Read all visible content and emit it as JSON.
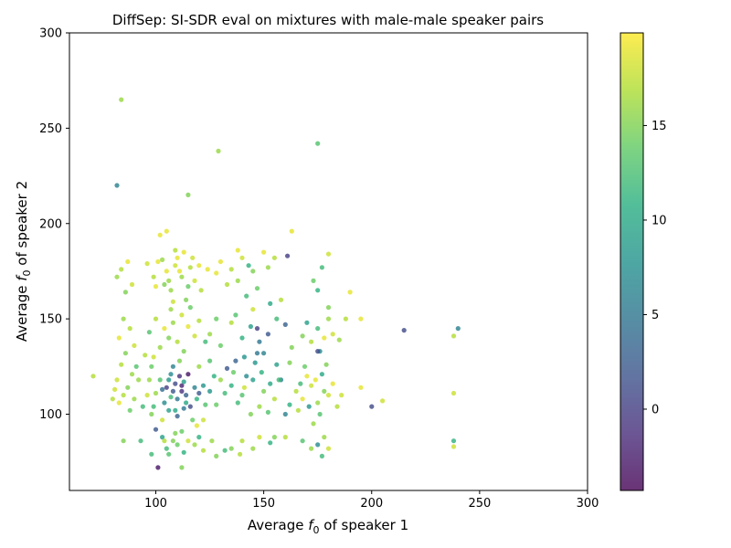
{
  "chart_data": {
    "type": "scatter",
    "title": "DiffSep: SI-SDR eval on mixtures with male-male speaker pairs",
    "xlabel": {
      "pre": "Average ",
      "var": "f",
      "sub": "0",
      "post": " of speaker 1"
    },
    "ylabel": {
      "pre": "Average ",
      "var": "f",
      "sub": "0",
      "post": " of speaker 2"
    },
    "xlim": [
      60,
      300
    ],
    "ylim": [
      60,
      300
    ],
    "xticks": [
      100,
      150,
      200,
      250,
      300
    ],
    "yticks": [
      100,
      150,
      200,
      250,
      300
    ],
    "colorbar": {
      "cmap": "viridis",
      "range": [
        -4.3,
        19.9
      ],
      "ticks": [
        0,
        5,
        10,
        15
      ]
    },
    "grid": false,
    "points": [
      [
        84,
        265,
        16
      ],
      [
        175,
        242,
        13
      ],
      [
        82,
        220,
        6
      ],
      [
        129,
        238,
        16
      ],
      [
        115,
        215,
        15
      ],
      [
        215,
        144,
        1
      ],
      [
        240,
        145,
        6
      ],
      [
        238,
        141,
        17
      ],
      [
        238,
        111,
        18
      ],
      [
        200,
        104,
        1
      ],
      [
        205,
        107,
        18
      ],
      [
        195,
        114,
        19
      ],
      [
        238,
        86,
        11
      ],
      [
        238,
        83,
        18
      ],
      [
        195,
        150,
        19
      ],
      [
        102,
        194,
        19
      ],
      [
        105,
        196,
        19
      ],
      [
        163,
        196,
        19
      ],
      [
        161,
        183,
        0
      ],
      [
        180,
        184,
        18
      ],
      [
        101,
        72,
        -3
      ],
      [
        112,
        72,
        15
      ],
      [
        71,
        120,
        17
      ],
      [
        108,
        112,
        2
      ],
      [
        110,
        108,
        5
      ],
      [
        112,
        115,
        -2
      ],
      [
        106,
        118,
        8
      ],
      [
        114,
        110,
        3
      ],
      [
        104,
        106,
        7
      ],
      [
        116,
        104,
        1
      ],
      [
        109,
        102,
        10
      ],
      [
        103,
        113,
        4
      ],
      [
        118,
        114,
        6
      ],
      [
        111,
        120,
        -1
      ],
      [
        107,
        109,
        12
      ],
      [
        113,
        117,
        9
      ],
      [
        105,
        114,
        0
      ],
      [
        119,
        108,
        11
      ],
      [
        102,
        118,
        13
      ],
      [
        115,
        121,
        -3
      ],
      [
        110,
        99,
        3
      ],
      [
        108,
        125,
        6
      ],
      [
        117,
        97,
        14
      ],
      [
        120,
        111,
        2
      ],
      [
        100,
        111,
        16
      ],
      [
        106,
        102,
        9
      ],
      [
        113,
        103,
        5
      ],
      [
        111,
        128,
        15
      ],
      [
        99,
        104,
        12
      ],
      [
        122,
        115,
        8
      ],
      [
        109,
        116,
        1
      ],
      [
        112,
        112,
        -1
      ],
      [
        114,
        106,
        10
      ],
      [
        107,
        121,
        7
      ],
      [
        103,
        97,
        18
      ],
      [
        123,
        105,
        13
      ],
      [
        105,
        82,
        12
      ],
      [
        108,
        86,
        15
      ],
      [
        113,
        80,
        11
      ],
      [
        118,
        84,
        16
      ],
      [
        103,
        88,
        9
      ],
      [
        110,
        84,
        14
      ],
      [
        122,
        81,
        17
      ],
      [
        100,
        92,
        2
      ],
      [
        106,
        79,
        13
      ],
      [
        115,
        86,
        18
      ],
      [
        126,
        86,
        16
      ],
      [
        98,
        79,
        12
      ],
      [
        109,
        90,
        15
      ],
      [
        120,
        88,
        11
      ],
      [
        104,
        86,
        17
      ],
      [
        112,
        91,
        14
      ],
      [
        135,
        82,
        15
      ],
      [
        140,
        86,
        17
      ],
      [
        145,
        82,
        16
      ],
      [
        148,
        88,
        18
      ],
      [
        153,
        85,
        11
      ],
      [
        132,
        81,
        12
      ],
      [
        128,
        78,
        15
      ],
      [
        139,
        79,
        17
      ],
      [
        155,
        88,
        15
      ],
      [
        168,
        86,
        13
      ],
      [
        172,
        82,
        16
      ],
      [
        175,
        84,
        7
      ],
      [
        177,
        78,
        12
      ],
      [
        180,
        82,
        18
      ],
      [
        178,
        88,
        16
      ],
      [
        93,
        86,
        12
      ],
      [
        85,
        86,
        15
      ],
      [
        105,
        175,
        19
      ],
      [
        109,
        178,
        18
      ],
      [
        112,
        172,
        16
      ],
      [
        101,
        180,
        19
      ],
      [
        116,
        177,
        17
      ],
      [
        104,
        168,
        15
      ],
      [
        110,
        182,
        19
      ],
      [
        118,
        170,
        18
      ],
      [
        107,
        165,
        16
      ],
      [
        113,
        185,
        19
      ],
      [
        120,
        178,
        19
      ],
      [
        99,
        172,
        17
      ],
      [
        115,
        167,
        14
      ],
      [
        108,
        159,
        18
      ],
      [
        103,
        181,
        16
      ],
      [
        111,
        175,
        19
      ],
      [
        117,
        182,
        18
      ],
      [
        106,
        170,
        16
      ],
      [
        121,
        165,
        17
      ],
      [
        100,
        167,
        19
      ],
      [
        114,
        160,
        15
      ],
      [
        109,
        186,
        17
      ],
      [
        96,
        179,
        18
      ],
      [
        124,
        176,
        19
      ],
      [
        84,
        176,
        17
      ],
      [
        87,
        180,
        19
      ],
      [
        82,
        172,
        16
      ],
      [
        89,
        168,
        18
      ],
      [
        86,
        164,
        15
      ],
      [
        85,
        150,
        16
      ],
      [
        88,
        145,
        17
      ],
      [
        83,
        140,
        19
      ],
      [
        90,
        136,
        18
      ],
      [
        86,
        132,
        15
      ],
      [
        84,
        126,
        17
      ],
      [
        89,
        121,
        16
      ],
      [
        82,
        118,
        18
      ],
      [
        87,
        114,
        15
      ],
      [
        85,
        110,
        17
      ],
      [
        83,
        106,
        19
      ],
      [
        90,
        108,
        16
      ],
      [
        88,
        102,
        14
      ],
      [
        81,
        113,
        18
      ],
      [
        92,
        118,
        16
      ],
      [
        94,
        104,
        12
      ],
      [
        80,
        108,
        17
      ],
      [
        91,
        125,
        13
      ],
      [
        100,
        150,
        17
      ],
      [
        104,
        145,
        19
      ],
      [
        108,
        148,
        16
      ],
      [
        112,
        152,
        18
      ],
      [
        106,
        140,
        15
      ],
      [
        110,
        138,
        17
      ],
      [
        115,
        146,
        19
      ],
      [
        102,
        135,
        16
      ],
      [
        118,
        141,
        18
      ],
      [
        97,
        143,
        13
      ],
      [
        113,
        133,
        15
      ],
      [
        120,
        149,
        17
      ],
      [
        107,
        155,
        16
      ],
      [
        123,
        138,
        12
      ],
      [
        99,
        130,
        18
      ],
      [
        116,
        156,
        14
      ],
      [
        130,
        180,
        19
      ],
      [
        135,
        176,
        17
      ],
      [
        140,
        182,
        18
      ],
      [
        145,
        175,
        15
      ],
      [
        138,
        170,
        16
      ],
      [
        143,
        178,
        11
      ],
      [
        150,
        185,
        19
      ],
      [
        133,
        168,
        17
      ],
      [
        147,
        166,
        14
      ],
      [
        128,
        174,
        19
      ],
      [
        152,
        177,
        16
      ],
      [
        138,
        186,
        19
      ],
      [
        155,
        182,
        17
      ],
      [
        142,
        162,
        12
      ],
      [
        125,
        142,
        16
      ],
      [
        130,
        136,
        14
      ],
      [
        135,
        148,
        17
      ],
      [
        140,
        140,
        11
      ],
      [
        144,
        146,
        9
      ],
      [
        148,
        138,
        5
      ],
      [
        152,
        142,
        2
      ],
      [
        156,
        150,
        12
      ],
      [
        160,
        147,
        3
      ],
      [
        163,
        135,
        15
      ],
      [
        145,
        155,
        18
      ],
      [
        137,
        152,
        13
      ],
      [
        150,
        132,
        6
      ],
      [
        158,
        160,
        17
      ],
      [
        128,
        150,
        14
      ],
      [
        153,
        158,
        10
      ],
      [
        141,
        130,
        8
      ],
      [
        147,
        145,
        0
      ],
      [
        168,
        141,
        15
      ],
      [
        172,
        138,
        17
      ],
      [
        175,
        145,
        12
      ],
      [
        178,
        140,
        19
      ],
      [
        170,
        148,
        9
      ],
      [
        176,
        133,
        7
      ],
      [
        180,
        150,
        16
      ],
      [
        173,
        170,
        14
      ],
      [
        177,
        177,
        12
      ],
      [
        175,
        165,
        11
      ],
      [
        182,
        142,
        18
      ],
      [
        185,
        139,
        16
      ],
      [
        188,
        150,
        17
      ],
      [
        190,
        164,
        19
      ],
      [
        180,
        156,
        15
      ],
      [
        135,
        115,
        11
      ],
      [
        140,
        110,
        13
      ],
      [
        145,
        118,
        9
      ],
      [
        150,
        112,
        15
      ],
      [
        138,
        106,
        12
      ],
      [
        142,
        120,
        7
      ],
      [
        148,
        104,
        16
      ],
      [
        153,
        116,
        10
      ],
      [
        136,
        122,
        14
      ],
      [
        146,
        127,
        8
      ],
      [
        155,
        108,
        17
      ],
      [
        132,
        111,
        12
      ],
      [
        144,
        100,
        15
      ],
      [
        158,
        118,
        6
      ],
      [
        137,
        128,
        3
      ],
      [
        149,
        122,
        11
      ],
      [
        141,
        114,
        18
      ],
      [
        152,
        101,
        13
      ],
      [
        130,
        118,
        16
      ],
      [
        125,
        112,
        8
      ],
      [
        128,
        105,
        14
      ],
      [
        133,
        124,
        2
      ],
      [
        147,
        132,
        5
      ],
      [
        156,
        126,
        9
      ],
      [
        165,
        112,
        17
      ],
      [
        168,
        108,
        19
      ],
      [
        172,
        115,
        18
      ],
      [
        175,
        106,
        16
      ],
      [
        170,
        120,
        19
      ],
      [
        178,
        112,
        15
      ],
      [
        166,
        102,
        17
      ],
      [
        174,
        118,
        19
      ],
      [
        180,
        110,
        18
      ],
      [
        176,
        100,
        13
      ],
      [
        169,
        125,
        14
      ],
      [
        182,
        116,
        19
      ],
      [
        171,
        104,
        8
      ],
      [
        177,
        121,
        10
      ],
      [
        173,
        95,
        16
      ],
      [
        184,
        104,
        17
      ],
      [
        179,
        126,
        15
      ],
      [
        167,
        116,
        12
      ],
      [
        162,
        105,
        11
      ],
      [
        186,
        110,
        18
      ],
      [
        160,
        100,
        6
      ],
      [
        175,
        133,
        1
      ],
      [
        97,
        118,
        16
      ],
      [
        98,
        125,
        14
      ],
      [
        96,
        110,
        18
      ],
      [
        95,
        131,
        17
      ],
      [
        98,
        100,
        15
      ],
      [
        120,
        125,
        16
      ],
      [
        122,
        97,
        18
      ],
      [
        127,
        120,
        11
      ],
      [
        125,
        128,
        13
      ],
      [
        119,
        94,
        19
      ],
      [
        160,
        88,
        17
      ],
      [
        162,
        127,
        15
      ],
      [
        157,
        118,
        12
      ]
    ]
  }
}
